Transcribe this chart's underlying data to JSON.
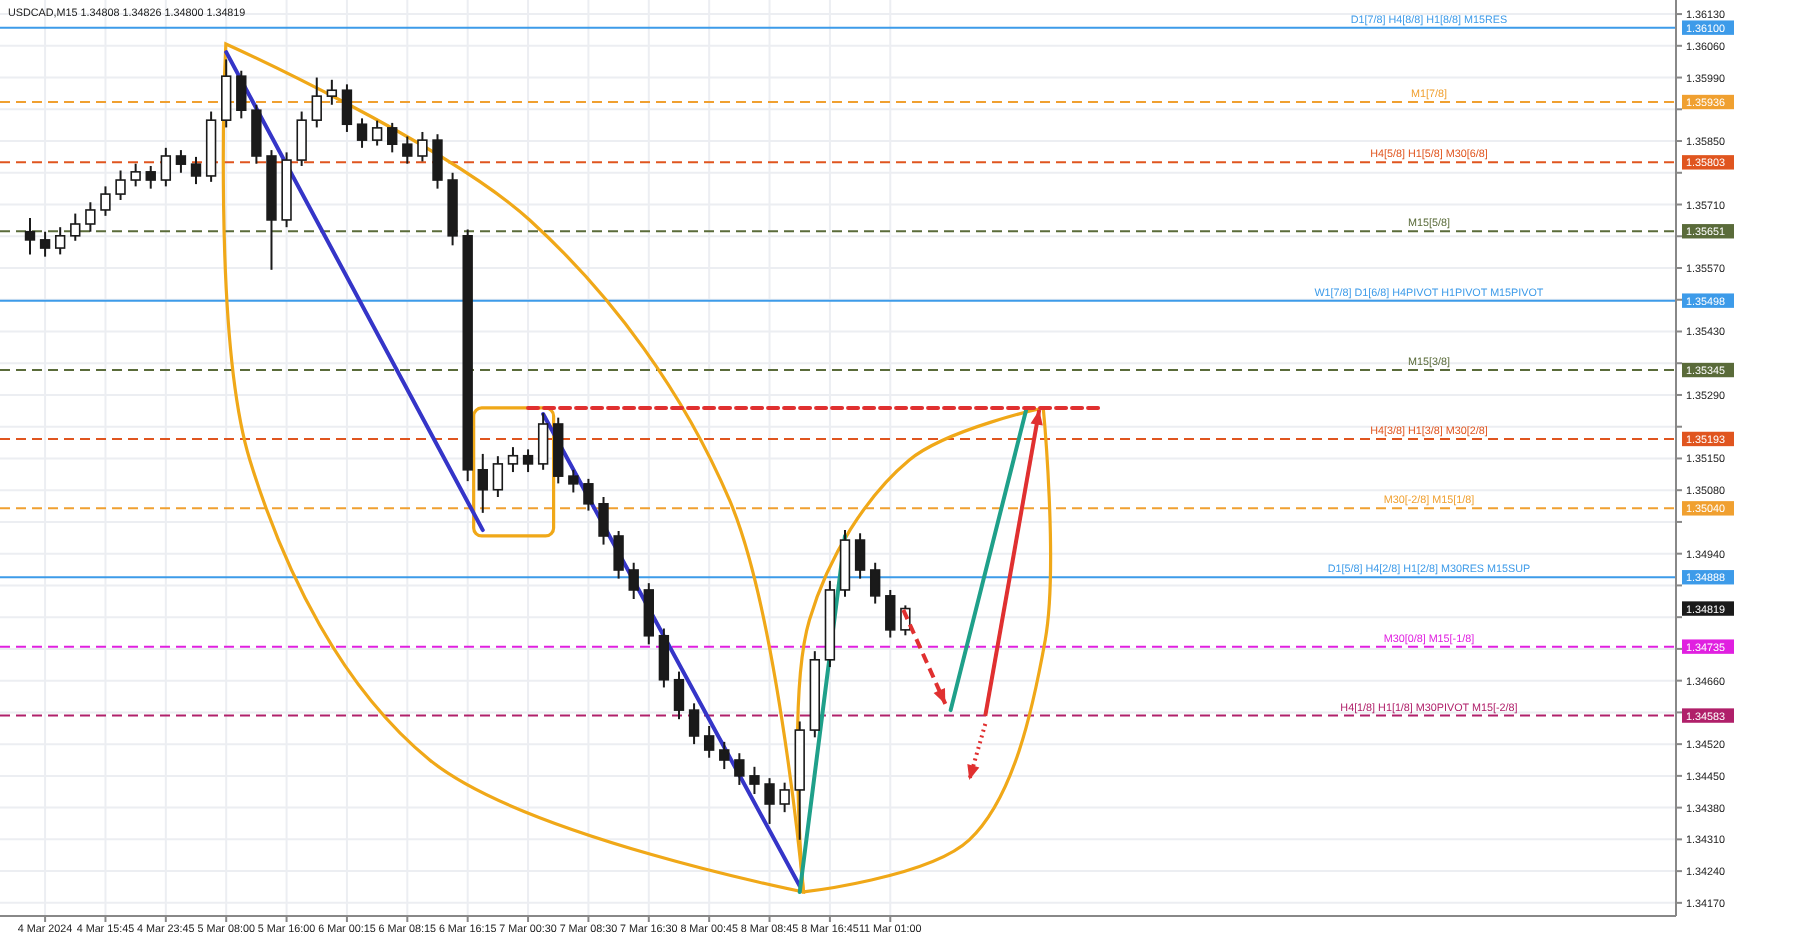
{
  "chart_data": {
    "type": "candlestick",
    "title": "USDCAD,M15  1.34808 1.34826 1.34800 1.34819",
    "categories": [
      null,
      "4 Mar 2024",
      null,
      null,
      null,
      "4 Mar 15:45",
      null,
      null,
      null,
      "4 Mar 23:45",
      null,
      null,
      null,
      "5 Mar 08:00",
      null,
      null,
      null,
      "5 Mar 16:00",
      null,
      null,
      null,
      "6 Mar 00:15",
      null,
      null,
      null,
      "6 Mar 08:15",
      null,
      null,
      null,
      "6 Mar 16:15",
      null,
      null,
      null,
      "7 Mar 00:30",
      null,
      null,
      null,
      "7 Mar 08:30",
      null,
      null,
      null,
      "7 Mar 16:30",
      null,
      null,
      null,
      "8 Mar 00:45",
      null,
      null,
      null,
      "8 Mar 08:45",
      null,
      null,
      null,
      "8 Mar 16:45",
      null,
      null,
      null,
      "11 Mar 01:00",
      null,
      null,
      null,
      null,
      null,
      null,
      null,
      null,
      null,
      null,
      null,
      null,
      null,
      null,
      null,
      null,
      null,
      null,
      null,
      null,
      null,
      null,
      null,
      null,
      null,
      null,
      null,
      null,
      null,
      null,
      null,
      null,
      null,
      null,
      null,
      null,
      null,
      null,
      null,
      null,
      null,
      null,
      null,
      null,
      null,
      null,
      null,
      null,
      null,
      null,
      null
    ],
    "ohlc": [
      [
        1.3565,
        1.3568,
        1.356,
        1.35632
      ],
      [
        1.35632,
        1.3565,
        1.35595,
        1.35614
      ],
      [
        1.35614,
        1.3566,
        1.356,
        1.35641
      ],
      [
        1.35641,
        1.3569,
        1.3563,
        1.35667
      ],
      [
        1.35667,
        1.35715,
        1.3565,
        1.35698
      ],
      [
        1.35698,
        1.3575,
        1.35685,
        1.35733
      ],
      [
        1.35733,
        1.35785,
        1.3572,
        1.35764
      ],
      [
        1.35764,
        1.358,
        1.3575,
        1.35782
      ],
      [
        1.35782,
        1.35795,
        1.35745,
        1.35764
      ],
      [
        1.35764,
        1.35835,
        1.3575,
        1.35817
      ],
      [
        1.35817,
        1.3583,
        1.3578,
        1.35799
      ],
      [
        1.35799,
        1.35815,
        1.35755,
        1.35773
      ],
      [
        1.35773,
        1.35915,
        1.3576,
        1.35896
      ],
      [
        1.35896,
        1.3603,
        1.3588,
        1.35993
      ],
      [
        1.35993,
        1.36005,
        1.359,
        1.35918
      ],
      [
        1.35918,
        1.3593,
        1.358,
        1.35817
      ],
      [
        1.35817,
        1.3583,
        1.35566,
        1.35676
      ],
      [
        1.35676,
        1.35825,
        1.3566,
        1.35808
      ],
      [
        1.35808,
        1.35915,
        1.35795,
        1.35896
      ],
      [
        1.35896,
        1.3599,
        1.3588,
        1.35949
      ],
      [
        1.35949,
        1.35985,
        1.3593,
        1.35962
      ],
      [
        1.35962,
        1.35975,
        1.3587,
        1.35887
      ],
      [
        1.35887,
        1.359,
        1.35835,
        1.35852
      ],
      [
        1.35852,
        1.35895,
        1.3584,
        1.35879
      ],
      [
        1.35879,
        1.3589,
        1.35825,
        1.35843
      ],
      [
        1.35843,
        1.3586,
        1.358,
        1.35817
      ],
      [
        1.35817,
        1.3587,
        1.35805,
        1.35852
      ],
      [
        1.35852,
        1.35865,
        1.35745,
        1.35764
      ],
      [
        1.35764,
        1.3578,
        1.3562,
        1.35641
      ],
      [
        1.35641,
        1.35655,
        1.351,
        1.35125
      ],
      [
        1.35125,
        1.3516,
        1.3503,
        1.35081
      ],
      [
        1.35081,
        1.35155,
        1.35065,
        1.35138
      ],
      [
        1.35138,
        1.35175,
        1.3512,
        1.35156
      ],
      [
        1.35156,
        1.3517,
        1.3512,
        1.35138
      ],
      [
        1.35138,
        1.3525,
        1.35125,
        1.35226
      ],
      [
        1.35226,
        1.3524,
        1.35095,
        1.35111
      ],
      [
        1.35111,
        1.35125,
        1.35075,
        1.35094
      ],
      [
        1.35094,
        1.35105,
        1.35035,
        1.3505
      ],
      [
        1.3505,
        1.35065,
        1.3496,
        1.34979
      ],
      [
        1.34979,
        1.3499,
        1.34885,
        1.34904
      ],
      [
        1.34904,
        1.3492,
        1.3484,
        1.3486
      ],
      [
        1.3486,
        1.34875,
        1.3474,
        1.34759
      ],
      [
        1.34759,
        1.34775,
        1.34645,
        1.34662
      ],
      [
        1.34662,
        1.3468,
        1.34575,
        1.34595
      ],
      [
        1.34595,
        1.3461,
        1.3452,
        1.34538
      ],
      [
        1.34538,
        1.3456,
        1.3449,
        1.34507
      ],
      [
        1.34507,
        1.34525,
        1.34465,
        1.34485
      ],
      [
        1.34485,
        1.345,
        1.3443,
        1.3445
      ],
      [
        1.3445,
        1.3447,
        1.3441,
        1.34432
      ],
      [
        1.34432,
        1.34445,
        1.34344,
        1.34388
      ],
      [
        1.34388,
        1.34435,
        1.3437,
        1.34419
      ],
      [
        1.34419,
        1.3457,
        1.34309,
        1.34551
      ],
      [
        1.34551,
        1.34725,
        1.34535,
        1.34706
      ],
      [
        1.34706,
        1.3488,
        1.3469,
        1.3486
      ],
      [
        1.3486,
        1.34992,
        1.34845,
        1.3497
      ],
      [
        1.3497,
        1.34985,
        1.34885,
        1.34904
      ],
      [
        1.34904,
        1.3492,
        1.3483,
        1.34847
      ],
      [
        1.34847,
        1.3486,
        1.34755,
        1.34772
      ],
      [
        1.34772,
        1.34826,
        1.3476,
        1.34819
      ],
      null,
      null,
      null,
      null,
      null,
      null,
      null,
      null,
      null,
      null,
      null,
      null,
      null,
      null,
      null,
      null,
      null,
      null,
      null,
      null,
      null,
      null,
      null,
      null,
      null,
      null,
      null,
      null,
      null,
      null,
      null,
      null,
      null,
      null,
      null,
      null,
      null,
      null,
      null,
      null,
      null,
      null,
      null,
      null,
      null,
      null,
      null,
      null,
      null,
      null
    ],
    "color": "#1a1a1a",
    "series": [
      {
        "type": "line",
        "values": [
          null,
          null,
          null,
          null,
          null,
          null,
          null,
          null,
          null,
          null,
          null,
          null,
          null,
          1.36046,
          null,
          null,
          null,
          null,
          null,
          null,
          null,
          null,
          null,
          null,
          null,
          null,
          null,
          null,
          null,
          null,
          1.34992,
          null,
          null,
          null,
          null,
          null,
          null,
          null,
          null,
          null,
          null,
          null,
          null,
          null,
          null,
          null,
          null,
          null,
          null,
          null,
          null,
          null,
          null,
          null,
          null,
          null,
          null,
          null,
          null,
          null,
          null,
          null,
          null,
          null,
          null,
          null,
          null,
          null,
          null,
          null,
          null,
          null,
          null,
          null,
          null,
          null,
          null,
          null,
          null,
          null,
          null,
          null,
          null,
          null,
          null,
          null,
          null,
          null,
          null,
          null,
          null,
          null,
          null,
          null,
          null,
          null,
          null,
          null,
          null,
          null,
          null,
          null,
          null,
          null,
          null,
          null,
          null,
          null,
          null
        ],
        "color": "#3535c8",
        "line_style": "solid"
      },
      {
        "type": "line",
        "values": [
          null,
          null,
          null,
          null,
          null,
          null,
          null,
          null,
          null,
          null,
          null,
          null,
          null,
          null,
          null,
          null,
          null,
          null,
          null,
          null,
          null,
          null,
          null,
          null,
          null,
          null,
          null,
          null,
          null,
          null,
          null,
          null,
          null,
          null,
          1.35248,
          null,
          null,
          null,
          null,
          null,
          null,
          null,
          null,
          null,
          null,
          null,
          null,
          null,
          null,
          null,
          null,
          1.34207,
          null,
          null,
          null,
          null,
          null,
          null,
          null,
          null,
          null,
          null,
          null,
          null,
          null,
          null,
          null,
          null,
          null,
          null,
          null,
          null,
          null,
          null,
          null,
          null,
          null,
          null,
          null,
          null,
          null,
          null,
          null,
          null,
          null,
          null,
          null,
          null,
          null,
          null,
          null,
          null,
          null,
          null,
          null,
          null,
          null,
          null,
          null,
          null,
          null,
          null,
          null,
          null,
          null,
          null,
          null,
          null,
          null
        ],
        "color": "#3535c8",
        "line_style": "solid"
      },
      {
        "type": "line",
        "values": [
          null,
          null,
          null,
          null,
          null,
          null,
          null,
          null,
          null,
          null,
          null,
          null,
          null,
          null,
          null,
          null,
          null,
          null,
          null,
          null,
          null,
          null,
          null,
          null,
          null,
          null,
          null,
          null,
          null,
          null,
          null,
          null,
          null,
          null,
          null,
          null,
          null,
          null,
          null,
          null,
          null,
          null,
          null,
          null,
          null,
          null,
          null,
          null,
          null,
          null,
          null,
          1.34194,
          null,
          null,
          1.34979,
          null,
          null,
          null,
          null,
          null,
          null,
          null,
          null,
          null,
          null,
          null,
          null,
          null,
          null,
          null,
          null,
          null,
          null,
          null,
          null,
          null,
          null,
          null,
          null,
          null,
          null,
          null,
          null,
          null,
          null,
          null,
          null,
          null,
          null,
          null,
          null,
          null,
          null,
          null,
          null,
          null,
          null,
          null,
          null,
          null,
          null,
          null,
          null,
          null,
          null,
          null,
          null,
          null,
          null
        ],
        "color": "#1fa08a",
        "line_style": "solid"
      },
      {
        "type": "line",
        "values": [
          null,
          null,
          null,
          null,
          null,
          null,
          null,
          null,
          null,
          null,
          null,
          null,
          null,
          null,
          null,
          null,
          null,
          null,
          null,
          null,
          null,
          null,
          null,
          null,
          null,
          null,
          null,
          null,
          null,
          null,
          null,
          null,
          null,
          null,
          null,
          null,
          null,
          null,
          null,
          null,
          null,
          null,
          null,
          null,
          null,
          null,
          null,
          null,
          null,
          null,
          null,
          null,
          null,
          null,
          null,
          null,
          null,
          null,
          null,
          null,
          null,
          1.34595,
          null,
          null,
          null,
          null,
          1.35257,
          null,
          null,
          null,
          null,
          null,
          null,
          null,
          null,
          null,
          null,
          null,
          null,
          null,
          null,
          null,
          null,
          null,
          null,
          null,
          null,
          null,
          null,
          null,
          null,
          null,
          null,
          null,
          null,
          null,
          null,
          null,
          null,
          null,
          null,
          null,
          null,
          null,
          null,
          null,
          null,
          null,
          null
        ],
        "color": "#1fa08a",
        "line_style": "solid"
      },
      {
        "type": "line",
        "values": [
          null,
          null,
          null,
          null,
          null,
          null,
          null,
          null,
          null,
          null,
          null,
          null,
          null,
          null,
          null,
          null,
          null,
          null,
          null,
          null,
          null,
          null,
          null,
          null,
          null,
          null,
          null,
          null,
          null,
          null,
          null,
          null,
          null,
          1.35261,
          null,
          null,
          null,
          null,
          null,
          null,
          null,
          null,
          null,
          null,
          null,
          null,
          null,
          null,
          null,
          null,
          null,
          null,
          null,
          null,
          null,
          null,
          null,
          null,
          null,
          null,
          null,
          null,
          null,
          null,
          null,
          null,
          null,
          null,
          null,
          null,
          null,
          1.35261,
          null,
          null,
          null,
          null,
          null,
          null,
          null,
          null,
          null,
          null,
          null,
          null,
          null,
          null,
          null,
          null,
          null,
          null,
          null,
          null,
          null,
          null,
          null,
          null,
          null,
          null,
          null,
          null,
          null,
          null,
          null,
          null,
          null,
          null,
          null,
          null,
          null
        ],
        "color": "#e03030",
        "line_style": "dashed"
      }
    ],
    "ylim": [
      1.34141,
      1.36161
    ],
    "annotations": [
      "1.36100",
      "1.35936",
      "1.35803",
      "1.35651",
      "1.35498",
      "1.35345",
      "1.35193",
      "1.35040",
      "1.34888",
      "1.34735",
      "1.34583",
      "1.34819"
    ],
    "yticks": [
      {
        "value": 1.3613,
        "label": "1.36130"
      },
      {
        "value": 1.3606,
        "label": "1.36060"
      },
      {
        "value": 1.3599,
        "label": "1.35990"
      },
      {
        "value": 1.3592,
        "label": null
      },
      {
        "value": 1.3585,
        "label": "1.35850"
      },
      {
        "value": 1.3578,
        "label": null
      },
      {
        "value": 1.3571,
        "label": "1.35710"
      },
      {
        "value": 1.3564,
        "label": null
      },
      {
        "value": 1.3557,
        "label": "1.35570"
      },
      {
        "value": 1.355,
        "label": null
      },
      {
        "value": 1.3543,
        "label": "1.35430"
      },
      {
        "value": 1.3536,
        "label": null
      },
      {
        "value": 1.3529,
        "label": "1.35290"
      },
      {
        "value": 1.3522,
        "label": null
      },
      {
        "value": 1.3515,
        "label": "1.35150"
      },
      {
        "value": 1.3508,
        "label": "1.35080"
      },
      {
        "value": 1.3501,
        "label": null
      },
      {
        "value": 1.3494,
        "label": "1.34940"
      },
      {
        "value": 1.3487,
        "label": null
      },
      {
        "value": 1.348,
        "label": null
      },
      {
        "value": 1.3473,
        "label": null
      },
      {
        "value": 1.3466,
        "label": "1.34660"
      },
      {
        "value": 1.3459,
        "label": null
      },
      {
        "value": 1.3452,
        "label": "1.34520"
      },
      {
        "value": 1.3445,
        "label": "1.34450"
      },
      {
        "value": 1.3438,
        "label": "1.34380"
      },
      {
        "value": 1.3431,
        "label": "1.34310"
      },
      {
        "value": 1.3424,
        "label": "1.34240"
      },
      {
        "value": 1.3417,
        "label": "1.34170"
      }
    ],
    "grid": true,
    "ref_lines": [
      {
        "axis": "y",
        "value": 1.361,
        "label": "D1[7/8] H4[8/8] H1[8/8] M15RES",
        "color": "#3d9be9",
        "line_style": "solid"
      },
      {
        "axis": "y",
        "value": 1.35936,
        "label": "M1[7/8]",
        "color": "#f0a030",
        "line_style": "dashed"
      },
      {
        "axis": "y",
        "value": 1.35803,
        "label": "H4[5/8] H1[5/8] M30[6/8]",
        "color": "#e0551f",
        "line_style": "dashed"
      },
      {
        "axis": "y",
        "value": 1.35651,
        "label": "M15[5/8]",
        "color": "#5a6b3a",
        "line_style": "dashed"
      },
      {
        "axis": "y",
        "value": 1.35498,
        "label": "W1[7/8] D1[6/8] H4PIVOT H1PIVOT M15PIVOT",
        "color": "#3d9be9",
        "line_style": "solid"
      },
      {
        "axis": "y",
        "value": 1.35345,
        "label": "M15[3/8]",
        "color": "#5a6b3a",
        "line_style": "dashed"
      },
      {
        "axis": "y",
        "value": 1.35193,
        "label": "H4[3/8] H1[3/8] M30[2/8]",
        "color": "#e0551f",
        "line_style": "dashed"
      },
      {
        "axis": "y",
        "value": 1.3504,
        "label": "M30[-2/8] M15[1/8]",
        "color": "#f0a030",
        "line_style": "dashed"
      },
      {
        "axis": "y",
        "value": 1.34888,
        "label": "D1[5/8] H4[2/8] H1[2/8] M30RES M15SUP",
        "color": "#3d9be9",
        "line_style": "solid"
      },
      {
        "axis": "y",
        "value": 1.34735,
        "label": "M30[0/8] M15[-1/8]",
        "color": "#e020e0",
        "line_style": "dashed"
      },
      {
        "axis": "y",
        "value": 1.34583,
        "label": "H4[1/8] H1[1/8] M30PIVOT M15[-2/8]",
        "color": "#b0206a",
        "line_style": "dashed"
      }
    ]
  }
}
